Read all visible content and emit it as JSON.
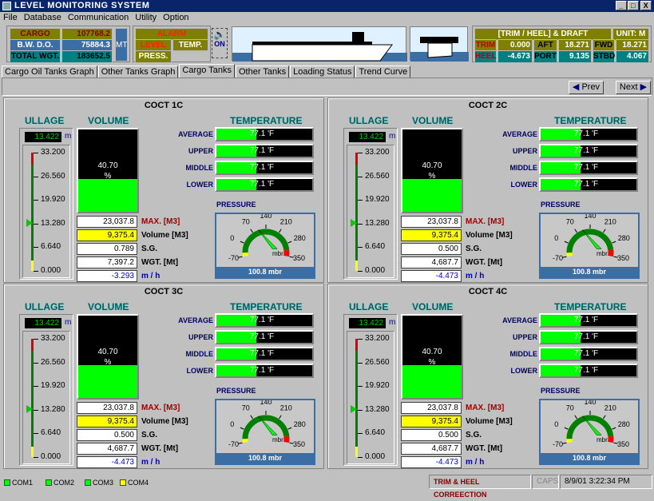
{
  "window": {
    "title": "LEVEL MONITORING SYSTEM",
    "controls": [
      "_",
      "□",
      "X"
    ]
  },
  "menu": [
    "File",
    "Database",
    "Communication",
    "Utility",
    "Option"
  ],
  "weights": {
    "cargo_label": "CARGO WGT.",
    "cargo_value": "107768.2",
    "bwdo_label": "B.W. D.O. WGT.",
    "bwdo_value": "75884.3",
    "total_label": "TOTAL WGT.",
    "total_value": "183652.5",
    "unit": "MT"
  },
  "alarm": {
    "title": "ALARM",
    "level": "LEVEL",
    "temp": "TEMP.",
    "press": "PRESS.",
    "sound_state": "ON"
  },
  "draft": {
    "title": "[TRIM / HEEL] & DRAFT",
    "unit": "UNIT: M",
    "trim_label": "TRIM",
    "trim": "0.000",
    "aft_label": "AFT",
    "aft": "18.271",
    "fwd_label": "FWD",
    "fwd": "18.271",
    "heel_label": "HEEL",
    "heel": "-4.673",
    "port_label": "PORT",
    "port": "9.135",
    "stbd_label": "STBD",
    "stbd": "4.067"
  },
  "tabs": [
    {
      "label": "Cargo Oil Tanks Graph",
      "active": false
    },
    {
      "label": "Other Tanks Graph",
      "active": false
    },
    {
      "label": "Cargo Tanks",
      "active": true
    },
    {
      "label": "Other Tanks",
      "active": false
    },
    {
      "label": "Loading Status",
      "active": false
    },
    {
      "label": "Trend Curve",
      "active": false
    }
  ],
  "nav": {
    "prev": "Prev",
    "next": "Next"
  },
  "labels": {
    "ullage": "ULLAGE",
    "volume": "VOLUME",
    "temperature": "TEMPERATURE",
    "pressure": "PRESSURE",
    "ullage_unit": "m",
    "max": "MAX. [M3]",
    "vol": "Volume [M3]",
    "sg": "S.G.",
    "wgt": "WGT. [Mt]",
    "rate": "m / h",
    "temp_rows": [
      "AVERAGE",
      "UPPER",
      "MIDDLE",
      "LOWER"
    ],
    "scale": [
      "33.200",
      "26.560",
      "19.920",
      "13.280",
      "6.640",
      "0.000"
    ],
    "gauge_ticks": [
      "-70",
      "0",
      "70",
      "140",
      "210",
      "280",
      "350"
    ],
    "gauge_unit": "mbr"
  },
  "tanks": [
    {
      "name": "COCT 1C",
      "ullage": "13.422",
      "ullage_value": 13.422,
      "volume_pct": 40.7,
      "volume_text": "40.70",
      "pct_sign": "%",
      "max": "23,037.8",
      "vol": "9,375.4",
      "sg": "0.789",
      "wgt": "7,397.2",
      "rate": "-3.293",
      "temps": [
        "77.1 'F",
        "77.1 'F",
        "77.1 'F",
        "77.1 'F"
      ],
      "pressure_value": 100.8,
      "pressure": "100.8 mbr"
    },
    {
      "name": "COCT 2C",
      "ullage": "13.422",
      "ullage_value": 13.422,
      "volume_pct": 40.7,
      "volume_text": "40.70",
      "pct_sign": "%",
      "max": "23,037.8",
      "vol": "9,375.4",
      "sg": "0.500",
      "wgt": "4,687.7",
      "rate": "-4.473",
      "temps": [
        "77.1 'F",
        "77.1 'F",
        "77.1 'F",
        "77.1 'F"
      ],
      "pressure_value": 100.8,
      "pressure": "100.8 mbr"
    },
    {
      "name": "COCT 3C",
      "ullage": "13.422",
      "ullage_value": 13.422,
      "volume_pct": 40.7,
      "volume_text": "40.70",
      "pct_sign": "%",
      "max": "23,037.8",
      "vol": "9,375.4",
      "sg": "0.500",
      "wgt": "4,687.7",
      "rate": "-4.473",
      "temps": [
        "77.1 'F",
        "77.1 'F",
        "77.1 'F",
        "77.1 'F"
      ],
      "pressure_value": 100.8,
      "pressure": "100.8 mbr"
    },
    {
      "name": "COCT 4C",
      "ullage": "13.422",
      "ullage_value": 13.422,
      "volume_pct": 40.7,
      "volume_text": "40.70",
      "pct_sign": "%",
      "max": "23,037.8",
      "vol": "9,375.4",
      "sg": "0.500",
      "wgt": "4,687.7",
      "rate": "-4.473",
      "temps": [
        "77.1 'F",
        "77.1 'F",
        "77.1 'F",
        "77.1 'F"
      ],
      "pressure_value": 100.8,
      "pressure": "100.8 mbr"
    }
  ],
  "status": {
    "coms": [
      {
        "label": "COM1",
        "color": "#00ff00"
      },
      {
        "label": "COM2",
        "color": "#00ff00"
      },
      {
        "label": "COM3",
        "color": "#00ff00"
      },
      {
        "label": "COM4",
        "color": "#ffff00"
      }
    ],
    "mode": "TRIM & HEEL CORREECTION",
    "caps": "CAPS",
    "datetime": "8/9/01 3:22:34 PM"
  },
  "colors": {
    "green": "#00ff00",
    "olive": "#808000",
    "teal": "#008080",
    "blue": "#3a6ea5",
    "alarm_red": "#ff2000"
  }
}
